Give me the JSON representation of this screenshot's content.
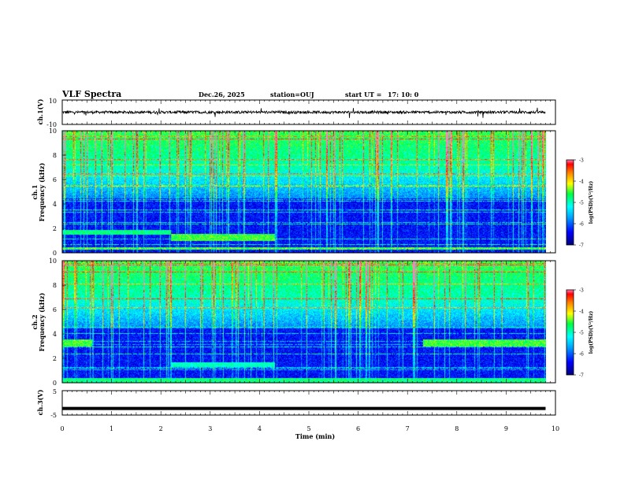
{
  "header": {
    "title": "VLF Spectra",
    "date": "Dec.26, 2025",
    "station": "station=OUJ",
    "start_label": "start  UT  =",
    "start_time": "17: 10: 0"
  },
  "chart_data": [
    {
      "type": "line",
      "panel": "ch1-waveform",
      "ylabel": "ch.1(V)",
      "ylim": [
        -10,
        10
      ],
      "yticks": [
        "10",
        "-10"
      ],
      "baseline": 0,
      "color": "#000000"
    },
    {
      "type": "heatmap",
      "panel": "ch1-spectrogram",
      "ylabel": "ch.1\nFrequency (kHz)",
      "ylabel_lines": [
        "ch.1",
        "Frequency (kHz)"
      ],
      "ylim": [
        0,
        10
      ],
      "yticks": [
        "0",
        "2",
        "4",
        "6",
        "8",
        "10"
      ],
      "xlim": [
        0,
        10
      ],
      "colorbar": {
        "label": "log(PSD)(V²/Hz)",
        "range": [
          -7,
          -3
        ],
        "ticks": [
          "-3",
          "-4",
          "-5",
          "-6",
          "-7"
        ]
      }
    },
    {
      "type": "heatmap",
      "panel": "ch2-spectrogram",
      "ylabel": "ch.2\nFrequency (kHz)",
      "ylabel_lines": [
        "ch.2",
        "Frequency (kHz)"
      ],
      "ylim": [
        0,
        10
      ],
      "yticks": [
        "0",
        "2",
        "4",
        "6",
        "8",
        "10"
      ],
      "xlim": [
        0,
        10
      ],
      "colorbar": {
        "label": "log(PSD)(V²/Hz)",
        "range": [
          -7,
          -3
        ],
        "ticks": [
          "-3",
          "-4",
          "-5",
          "-6",
          "-7"
        ]
      }
    },
    {
      "type": "line",
      "panel": "ch3-waveform",
      "ylabel": "ch.3(V)",
      "ylim": [
        -5,
        5
      ],
      "yticks": [
        "5",
        "-5"
      ],
      "x": [
        0,
        9.8
      ],
      "y": [
        -2.3,
        -2.3
      ],
      "color": "#000000"
    }
  ],
  "xaxis": {
    "label": "Time (min)",
    "range": [
      0,
      10
    ],
    "ticks": [
      "0",
      "1",
      "2",
      "3",
      "4",
      "5",
      "6",
      "7",
      "8",
      "9",
      "10"
    ]
  }
}
